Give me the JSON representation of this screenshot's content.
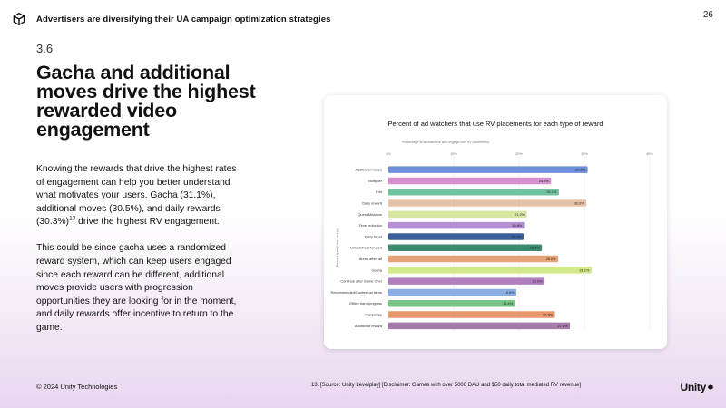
{
  "header": {
    "title": "Advertisers are diversifying their UA campaign optimization strategies",
    "logo_icon": "unity-cube-icon"
  },
  "page_number": "26",
  "section_number": "3.6",
  "headline": "Gacha and additional moves drive the highest rewarded video engagement",
  "body": {
    "p1_main": "Knowing the rewards that drive the highest rates of engagement can help you better understand what motivates your users. Gacha (31.1%), additional moves (30.5%), and daily rewards (30.3%)",
    "p1_sup": "13",
    "p1_end": " drive the highest RV engagement.",
    "p2": "This could be since gacha uses a randomized reward system, which can keep users engaged since each reward can be different, additional moves provide users with progression opportunities they are looking for in the moment, and daily rewards offer incentive to return to the game."
  },
  "footer": {
    "copyright": "© 2024 Unity Technologies",
    "footnote": "13. [Source: Unity Levelplay] [Disclaimer: Games with over 5000 DAU and $50 daily total mediated RV revenue]",
    "brand": "Unity"
  },
  "chart_data": {
    "type": "bar",
    "orientation": "horizontal",
    "title": "Percent of ad watchers that use RV placements for each type of reward",
    "subtitle": "Percentage of ad watchers who engage with RV placements",
    "ylabel": "Reward type (User-facing)",
    "xlim": [
      0,
      40
    ],
    "xticks": [
      "0%",
      "10%",
      "20%",
      "30%",
      "40%"
    ],
    "grid": true,
    "categories": [
      "Additional moves",
      "Multiplier",
      "Hint",
      "Daily reward",
      "Quest/Missions",
      "Time reduction",
      "Entry ticket",
      "Unlock/Fast-forward",
      "Arena after fail",
      "Gacha",
      "Continue after Game Over",
      "Recommended/Contextual items",
      "Offline earn progress",
      "Currencies",
      "Additional reward"
    ],
    "values": [
      30.5,
      24.9,
      26.1,
      30.3,
      21.2,
      20.8,
      20.7,
      23.5,
      26.0,
      31.1,
      23.9,
      19.6,
      19.4,
      25.5,
      27.8
    ],
    "labels": [
      "30.5%",
      "24.9%",
      "26.1%",
      "30.3%",
      "21.2%",
      "20.8%",
      "20.7%",
      "23.5%",
      "26.0%",
      "31.1%",
      "23.9%",
      "19.6%",
      "19.4%",
      "25.5%",
      "27.8%"
    ],
    "colors": [
      "#6f8ed8",
      "#d68fd0",
      "#6fc49d",
      "#e8c2a8",
      "#d9e6a3",
      "#b58fd3",
      "#3b5f9b",
      "#3d8a6f",
      "#e8a476",
      "#d2e889",
      "#b07fc0",
      "#89aee5",
      "#78c489",
      "#e7976c",
      "#a57aa8"
    ]
  }
}
